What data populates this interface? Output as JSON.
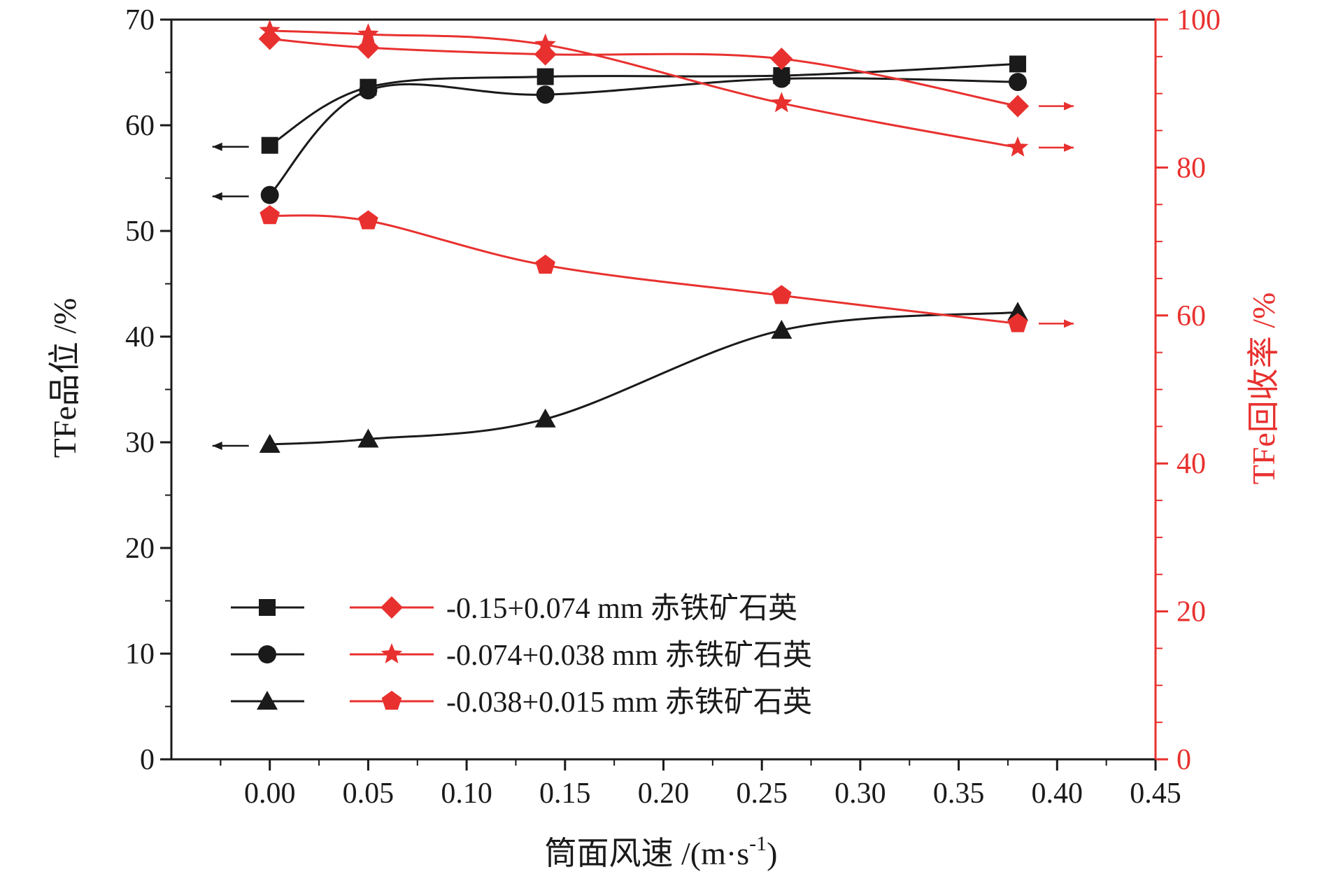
{
  "colors": {
    "black": "#1a1a1a",
    "red": "#e8312f"
  },
  "chart_data": {
    "type": "line",
    "xlabel": "筒面风速 /(m·s",
    "xlabel_sup": "-1",
    "xlabel_close": ")",
    "ylabel_left": "TFe品位 /%",
    "ylabel_right": "TFe回收率 /%",
    "xlim": [
      -0.05,
      0.45
    ],
    "ylim_left": [
      0,
      70
    ],
    "ylim_right": [
      0,
      100
    ],
    "x_ticks": [
      "0.00",
      "0.05",
      "0.10",
      "0.15",
      "0.20",
      "0.25",
      "0.30",
      "0.35",
      "0.40",
      "0.45"
    ],
    "x_tick_values": [
      0.0,
      0.05,
      0.1,
      0.15,
      0.2,
      0.25,
      0.3,
      0.35,
      0.4,
      0.45
    ],
    "y_left_ticks": [
      "0",
      "10",
      "20",
      "30",
      "40",
      "50",
      "60",
      "70"
    ],
    "y_left_tick_values": [
      0,
      10,
      20,
      30,
      40,
      50,
      60,
      70
    ],
    "y_right_ticks": [
      "0",
      "20",
      "40",
      "60",
      "80",
      "100"
    ],
    "y_right_tick_values": [
      0,
      20,
      40,
      60,
      80,
      100
    ],
    "x": [
      0.0,
      0.05,
      0.14,
      0.26,
      0.38
    ],
    "series": [
      {
        "name": "-0.15+0.074 mm 赤铁矿石英",
        "axis": "left",
        "marker": "square",
        "color": "black",
        "values": [
          58.1,
          63.6,
          64.6,
          64.7,
          65.8
        ]
      },
      {
        "name": "-0.074+0.038 mm 赤铁矿石英",
        "axis": "left",
        "marker": "circle",
        "color": "black",
        "values": [
          53.4,
          63.3,
          62.9,
          64.4,
          64.1
        ]
      },
      {
        "name": "-0.038+0.015 mm 赤铁矿石英",
        "axis": "left",
        "marker": "triangle",
        "color": "black",
        "values": [
          29.8,
          30.3,
          32.2,
          40.6,
          42.3
        ]
      },
      {
        "name": "-0.15+0.074 mm 赤铁矿石英",
        "axis": "right",
        "marker": "diamond",
        "color": "red",
        "values": [
          97.4,
          96.2,
          95.3,
          94.7,
          88.3
        ]
      },
      {
        "name": "-0.074+0.038 mm 赤铁矿石英",
        "axis": "right",
        "marker": "star",
        "color": "red",
        "values": [
          98.5,
          98.0,
          96.6,
          88.7,
          82.7
        ]
      },
      {
        "name": "-0.038+0.015 mm 赤铁矿石英",
        "axis": "right",
        "marker": "pentagon",
        "color": "red",
        "values": [
          73.5,
          72.8,
          66.8,
          62.7,
          58.9
        ]
      }
    ],
    "legend_position": "bottom-left",
    "grid": false
  }
}
